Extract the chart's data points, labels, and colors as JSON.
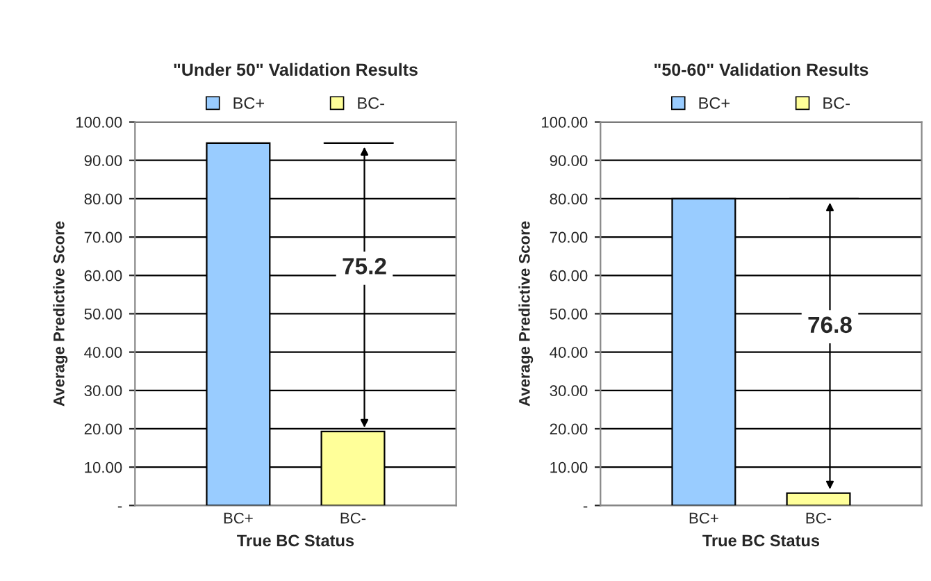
{
  "chart_data": [
    {
      "type": "bar",
      "title": "\"Under 50\" Validation Results",
      "xlabel": "True BC Status",
      "ylabel": "Average Predictive Score",
      "categories": [
        "BC+",
        "BC-"
      ],
      "series": [
        {
          "name": "BC+",
          "color": "#99ccff",
          "values": [
            94.5,
            null
          ]
        },
        {
          "name": "BC-",
          "color": "#ffff99",
          "values": [
            null,
            19.3
          ]
        }
      ],
      "ylim": [
        0,
        100
      ],
      "yticks": [
        {
          "value": 0,
          "label": "-"
        },
        {
          "value": 10,
          "label": "10.00"
        },
        {
          "value": 20,
          "label": "20.00"
        },
        {
          "value": 30,
          "label": "30.00"
        },
        {
          "value": 40,
          "label": "40.00"
        },
        {
          "value": 50,
          "label": "50.00"
        },
        {
          "value": 60,
          "label": "60.00"
        },
        {
          "value": 70,
          "label": "70.00"
        },
        {
          "value": 80,
          "label": "80.00"
        },
        {
          "value": 90,
          "label": "90.00"
        },
        {
          "value": 100,
          "label": "100.00"
        }
      ],
      "grid": "y",
      "legend": "top",
      "annotations": [
        "75.2"
      ]
    },
    {
      "type": "bar",
      "title": "\"50-60\" Validation Results",
      "xlabel": "True BC Status",
      "ylabel": "Average Predictive Score",
      "categories": [
        "BC+",
        "BC-"
      ],
      "series": [
        {
          "name": "BC+",
          "color": "#99ccff",
          "values": [
            80.0,
            null
          ]
        },
        {
          "name": "BC-",
          "color": "#ffff99",
          "values": [
            null,
            3.2
          ]
        }
      ],
      "ylim": [
        0,
        100
      ],
      "yticks": [
        {
          "value": 0,
          "label": "-"
        },
        {
          "value": 10,
          "label": "10.00"
        },
        {
          "value": 20,
          "label": "20.00"
        },
        {
          "value": 30,
          "label": "30.00"
        },
        {
          "value": 40,
          "label": "40.00"
        },
        {
          "value": 50,
          "label": "50.00"
        },
        {
          "value": 60,
          "label": "60.00"
        },
        {
          "value": 70,
          "label": "70.00"
        },
        {
          "value": 80,
          "label": "80.00"
        },
        {
          "value": 90,
          "label": "90.00"
        },
        {
          "value": 100,
          "label": "100.00"
        }
      ],
      "grid": "y",
      "legend": "top",
      "annotations": [
        "76.8"
      ]
    }
  ]
}
